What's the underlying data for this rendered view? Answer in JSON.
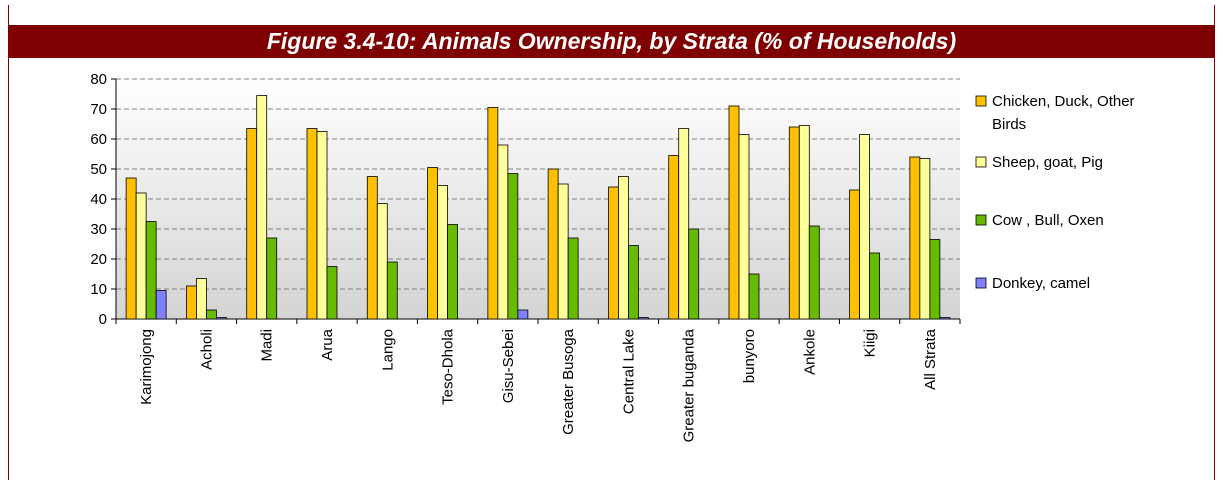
{
  "figure_title": "Figure 3.4-10: Animals Ownership, by Strata (% of Households)",
  "colors": {
    "title_bg": "#7f0000",
    "plot_bg_top": "#ffffff",
    "plot_bg_bottom": "#d4d4d4",
    "series": [
      "#ffc000",
      "#ffff99",
      "#66bb00",
      "#8080ff"
    ]
  },
  "chart_data": {
    "type": "bar",
    "title": "",
    "xlabel": "",
    "ylabel": "",
    "ylim": [
      0,
      80
    ],
    "yticks": [
      0,
      10,
      20,
      30,
      40,
      50,
      60,
      70,
      80
    ],
    "grid": true,
    "legend_position": "right",
    "categories": [
      "Karimojong",
      "Acholi",
      "Madi",
      "Arua",
      "Lango",
      "Teso-Dhola",
      "Gisu-Sebei",
      "Greater Busoga",
      "Central Lake",
      "Greater buganda",
      "bunyoro",
      "Ankole",
      "Kiigi",
      "All Strata"
    ],
    "series": [
      {
        "name": "Chicken, Duck, Other Birds",
        "values": [
          47,
          11,
          63.5,
          63.5,
          47.5,
          50.5,
          70.5,
          50,
          44,
          54.5,
          71,
          64,
          43,
          54
        ]
      },
      {
        "name": "Sheep, goat, Pig",
        "values": [
          42,
          13.5,
          74.5,
          62.5,
          38.5,
          44.5,
          58,
          45,
          47.5,
          63.5,
          61.5,
          64.5,
          61.5,
          53.5
        ]
      },
      {
        "name": "Cow , Bull, Oxen",
        "values": [
          32.5,
          3,
          27,
          17.5,
          19,
          31.5,
          48.5,
          27,
          24.5,
          30,
          15,
          31,
          22,
          26.5
        ]
      },
      {
        "name": "Donkey, camel",
        "values": [
          9.5,
          0.5,
          0,
          0,
          0,
          0,
          3,
          0,
          0.5,
          0,
          0,
          0,
          0,
          0.5
        ]
      }
    ]
  }
}
